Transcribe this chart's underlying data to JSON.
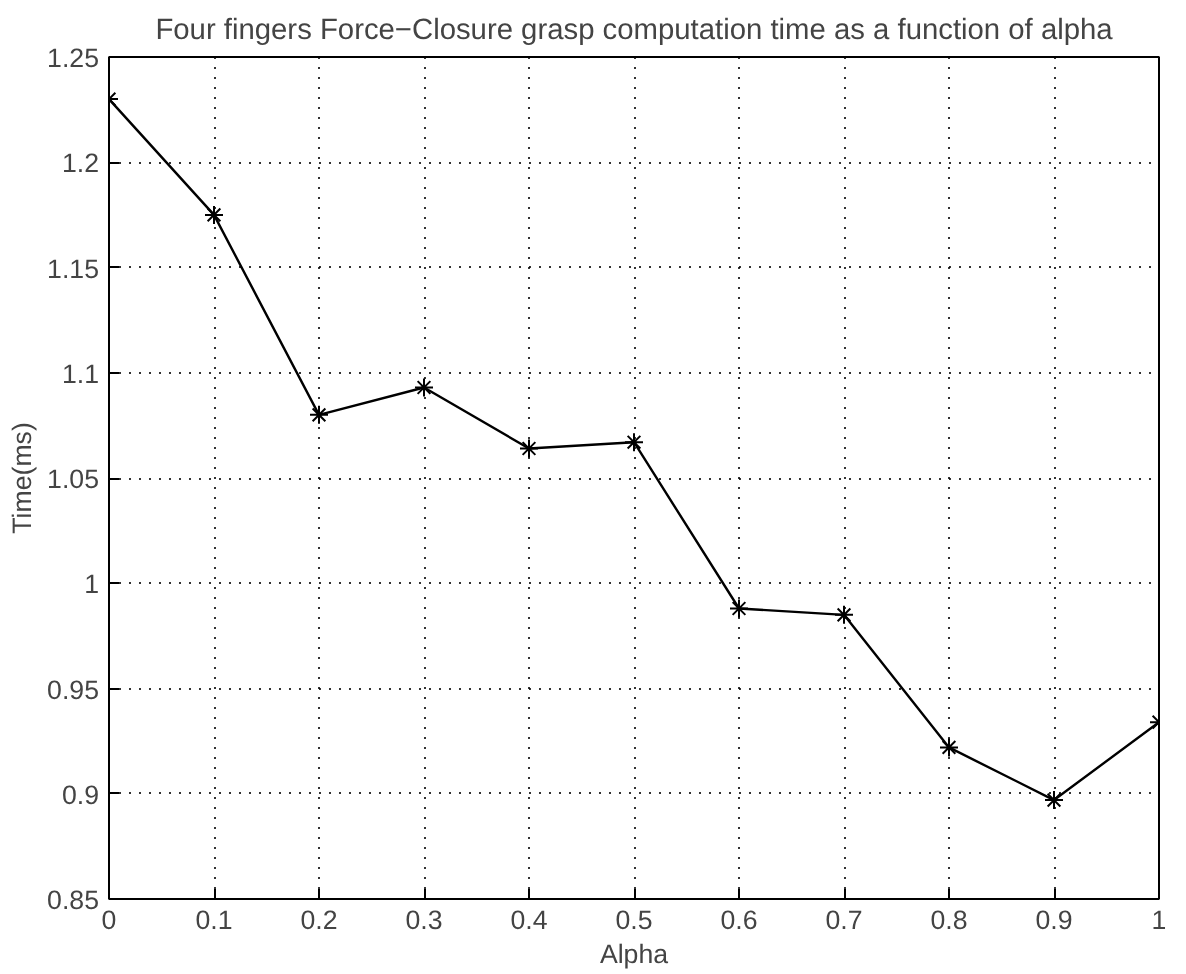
{
  "chart_data": {
    "type": "line",
    "title": "Four fingers Force−Closure grasp computation time as a function of alpha",
    "xlabel": "Alpha",
    "ylabel": "Time(ms)",
    "x": [
      0,
      0.1,
      0.2,
      0.3,
      0.4,
      0.5,
      0.6,
      0.7,
      0.8,
      0.9,
      1
    ],
    "series": [
      {
        "color": "#000000",
        "values": [
          1.23,
          1.175,
          1.08,
          1.093,
          1.064,
          1.067,
          0.988,
          0.985,
          0.922,
          0.897,
          0.934
        ]
      }
    ],
    "xlim": [
      0,
      1
    ],
    "ylim": [
      0.85,
      1.25
    ],
    "xticks": [
      0,
      0.1,
      0.2,
      0.3,
      0.4,
      0.5,
      0.6,
      0.7,
      0.8,
      0.9,
      1
    ],
    "yticks": [
      0.85,
      0.9,
      0.95,
      1,
      1.05,
      1.1,
      1.15,
      1.2,
      1.25
    ],
    "grid": true,
    "marker": "cross",
    "line_style": "solid"
  }
}
